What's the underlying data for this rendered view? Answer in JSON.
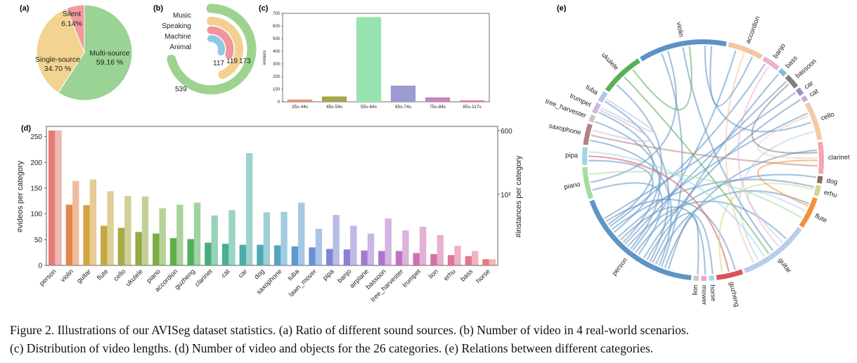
{
  "colors": {
    "silent": "#f29a9c",
    "single": "#f2d38f",
    "multi": "#9ad394",
    "music": "#9dd38f",
    "speaking": "#f3d08f",
    "machine": "#f1949c",
    "animal": "#8ec9e6"
  },
  "caption": {
    "line1": "Figure 2. Illustrations of our AVISeg dataset statistics. (a) Ratio of different sound sources. (b) Number of video in 4 real-world scenarios.",
    "line2": "(c) Distribution of video lengths. (d) Number of video and objects for the 26 categories. (e) Relations between different categories."
  },
  "chart_data": [
    {
      "panel": "(a)",
      "type": "pie",
      "labels": [
        "Silent",
        "Single-source",
        "Multi-source"
      ],
      "values": [
        6.14,
        34.7,
        59.16
      ],
      "value_labels": [
        "6.14%",
        "34.70 %",
        "59.16 %"
      ],
      "colors": [
        "#f29a9c",
        "#f2d38f",
        "#9ad394"
      ]
    },
    {
      "panel": "(b)",
      "type": "radial-bar",
      "categories": [
        "Music",
        "Speaking",
        "Machine",
        "Animal"
      ],
      "values": [
        539,
        173,
        119,
        117
      ],
      "value_labels": [
        "539",
        "173",
        "119",
        "117"
      ],
      "colors": [
        "#9dd38f",
        "#f3d08f",
        "#f1949c",
        "#8ec9e6"
      ]
    },
    {
      "panel": "(c)",
      "type": "bar",
      "categories": [
        "25s-44s",
        "45s-54s",
        "55s-64s",
        "65s-74s",
        "75s-84s",
        "85s-117s"
      ],
      "values": [
        18,
        42,
        670,
        128,
        35,
        12
      ],
      "colors": [
        "#e8917c",
        "#a3a64a",
        "#97e3b0",
        "#9b9bd1",
        "#c984b8",
        "#e67f8f"
      ],
      "ylabel": "#videos",
      "ylim": [
        0,
        700
      ],
      "yticks": [
        "0",
        "100",
        "200",
        "300",
        "400",
        "500",
        "600",
        "700"
      ]
    },
    {
      "panel": "(d)",
      "type": "bar",
      "categories": [
        "person",
        "violin",
        "guitar",
        "flute",
        "cello",
        "ukulele",
        "piano",
        "accordion",
        "guzheng",
        "clarinet",
        "cat",
        "car",
        "dog",
        "saxophone",
        "tuba",
        "lawn_mover",
        "pipa",
        "banjo",
        "airplane",
        "bassoon",
        "tree_harvester",
        "trumpet",
        "lion",
        "erhu",
        "bass",
        "horse"
      ],
      "series": [
        {
          "name": "#videos per category",
          "axis": "left",
          "values": [
            262,
            118,
            117,
            77,
            73,
            65,
            62,
            53,
            51,
            44,
            42,
            40,
            40,
            39,
            37,
            35,
            32,
            31,
            29,
            28,
            28,
            24,
            22,
            20,
            18,
            12
          ]
        },
        {
          "name": "#instances per category",
          "axis": "right",
          "values": [
            262,
            164,
            167,
            144,
            135,
            134,
            111,
            118,
            122,
            97,
            107,
            218,
            103,
            104,
            122,
            71,
            98,
            77,
            62,
            91,
            68,
            75,
            59,
            38,
            28,
            12
          ]
        }
      ],
      "colors": [
        "#e47c74",
        "#e2874f",
        "#d3a33f",
        "#c3a744",
        "#aaa946",
        "#92ab45",
        "#7aad44",
        "#60ae47",
        "#4fae5a",
        "#47ad7b",
        "#49ae93",
        "#4cada6",
        "#4ea9b6",
        "#56a3c4",
        "#5e9bcf",
        "#6990d3",
        "#7a87d4",
        "#8b80d2",
        "#9e7bd0",
        "#ae76ca",
        "#c072c2",
        "#cc70b5",
        "#d671a6",
        "#de7397",
        "#e27689",
        "#e4797e"
      ],
      "ylabel": "#videos per category",
      "ylabel_right": "#instances per category",
      "ylim": [
        0,
        270
      ],
      "yticks": [
        "0",
        "50",
        "100",
        "150",
        "200",
        "250"
      ],
      "yticks_right": [
        "10²",
        "600"
      ]
    },
    {
      "panel": "(e)",
      "type": "chord",
      "categories": [
        "violin",
        "accordion",
        "banjo",
        "bass",
        "bassoon",
        "car",
        "cat",
        "cello",
        "clarinet",
        "dog",
        "erhu",
        "flute",
        "guitar",
        "guzheng",
        "horse",
        "mower",
        "lion",
        "person",
        "piano",
        "pipa",
        "saxophone",
        "tree_harvester",
        "trumpet",
        "tuba",
        "ukulele"
      ],
      "weights": [
        50,
        20,
        10,
        4,
        8,
        4,
        3,
        22,
        18,
        4,
        6,
        18,
        40,
        15,
        3,
        3,
        3,
        75,
        18,
        10,
        12,
        4,
        6,
        6,
        25
      ],
      "colors": [
        "#5b93c8",
        "#f5c5a1",
        "#e9b3d0",
        "#7bc2d9",
        "#7f7f7f",
        "#9f8fc2",
        "#c5b0d5",
        "#f6c9a4",
        "#f4a6ab",
        "#8c6b5e",
        "#d5d58d",
        "#f58e3a",
        "#b9cdea",
        "#d9535b",
        "#a9d6e5",
        "#f1a2cf",
        "#c9c9c9",
        "#5f94c5",
        "#a8dba0",
        "#9ed6e6",
        "#b0847d",
        "#c7c7c7",
        "#d0b8d8",
        "#aec7e8",
        "#5aaf5a"
      ]
    }
  ]
}
